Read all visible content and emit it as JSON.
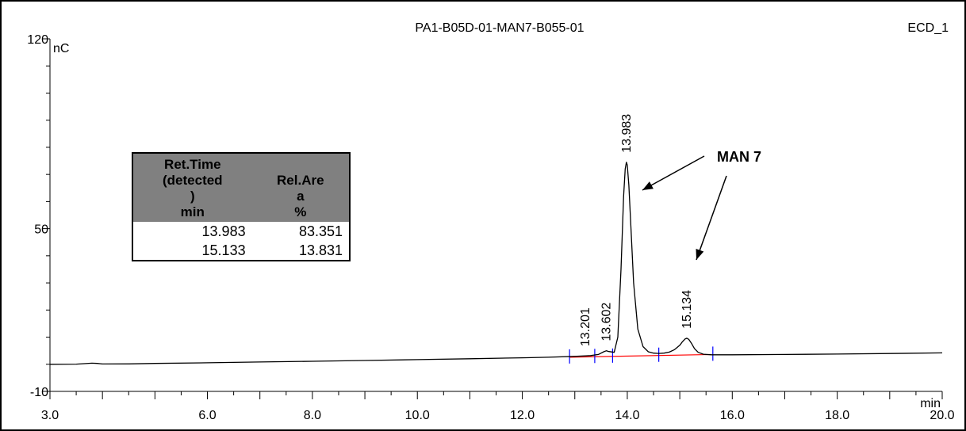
{
  "chart_data": {
    "type": "line",
    "title": "PA1-B05D-01-MAN7-B055-01",
    "channel": "ECD_1",
    "xlabel": "min",
    "ylabel": "nC",
    "xlim": [
      3.0,
      20.0
    ],
    "ylim": [
      -10,
      120
    ],
    "x_ticks": [
      "3.0",
      "6.0",
      "8.0",
      "10.0",
      "12.0",
      "14.0",
      "16.0",
      "18.0",
      "20.0"
    ],
    "x_tick_values": [
      3.0,
      6.0,
      8.0,
      10.0,
      12.0,
      14.0,
      16.0,
      18.0,
      20.0
    ],
    "y_ticks": [
      "120",
      "50",
      "-10"
    ],
    "y_tick_values": [
      120,
      50,
      -10
    ],
    "grid": false,
    "series": [
      {
        "color": "#000000",
        "x": [
          3.0,
          3.5,
          3.8,
          3.9,
          4.0,
          4.5,
          5.0,
          6.0,
          7.0,
          8.0,
          9.0,
          10.0,
          11.0,
          12.0,
          12.5,
          13.0,
          13.2,
          13.3,
          13.45,
          13.55,
          13.602,
          13.65,
          13.75,
          13.82,
          13.88,
          13.93,
          13.96,
          13.983,
          14.0,
          14.03,
          14.07,
          14.12,
          14.2,
          14.3,
          14.4,
          14.5,
          14.6,
          14.7,
          14.8,
          14.9,
          15.0,
          15.05,
          15.1,
          15.134,
          15.17,
          15.22,
          15.28,
          15.35,
          15.45,
          15.6,
          16.0,
          17.0,
          18.0,
          19.0,
          20.0
        ],
        "y": [
          0.0,
          0.05,
          0.4,
          0.3,
          0.1,
          0.15,
          0.3,
          0.55,
          0.85,
          1.1,
          1.4,
          1.7,
          2.05,
          2.4,
          2.6,
          2.9,
          3.1,
          3.2,
          3.6,
          4.6,
          5.0,
          4.7,
          4.4,
          10.0,
          35.0,
          62.0,
          72.0,
          74.5,
          73.5,
          66.0,
          50.0,
          30.0,
          13.0,
          6.5,
          4.6,
          4.1,
          4.0,
          4.1,
          4.5,
          5.4,
          7.0,
          8.3,
          9.3,
          9.6,
          9.2,
          7.8,
          5.8,
          4.4,
          3.7,
          3.5,
          3.5,
          3.6,
          3.75,
          3.95,
          4.2
        ]
      }
    ],
    "baseline": {
      "color": "#ff0000",
      "x": [
        12.9,
        15.6
      ],
      "y": [
        2.6,
        3.6
      ]
    },
    "integration_marks": {
      "color": "#0000ff",
      "x": [
        12.9,
        13.38,
        13.72,
        14.6,
        15.63
      ]
    },
    "peak_labels": [
      {
        "x": 13.201,
        "y": 3.1,
        "text": "13.201"
      },
      {
        "x": 13.602,
        "y": 5.0,
        "text": "13.602"
      },
      {
        "x": 13.983,
        "y": 74.5,
        "text": "13.983"
      },
      {
        "x": 15.134,
        "y": 9.6,
        "text": "15.134"
      }
    ],
    "annotation": {
      "text": "MAN 7"
    },
    "table": {
      "headers": [
        "Ret.Time\n(detected\n)\nmin",
        "Rel.Are\na\n%"
      ],
      "rows": [
        [
          "13.983",
          "83.351"
        ],
        [
          "15.133",
          "13.831"
        ]
      ]
    }
  }
}
